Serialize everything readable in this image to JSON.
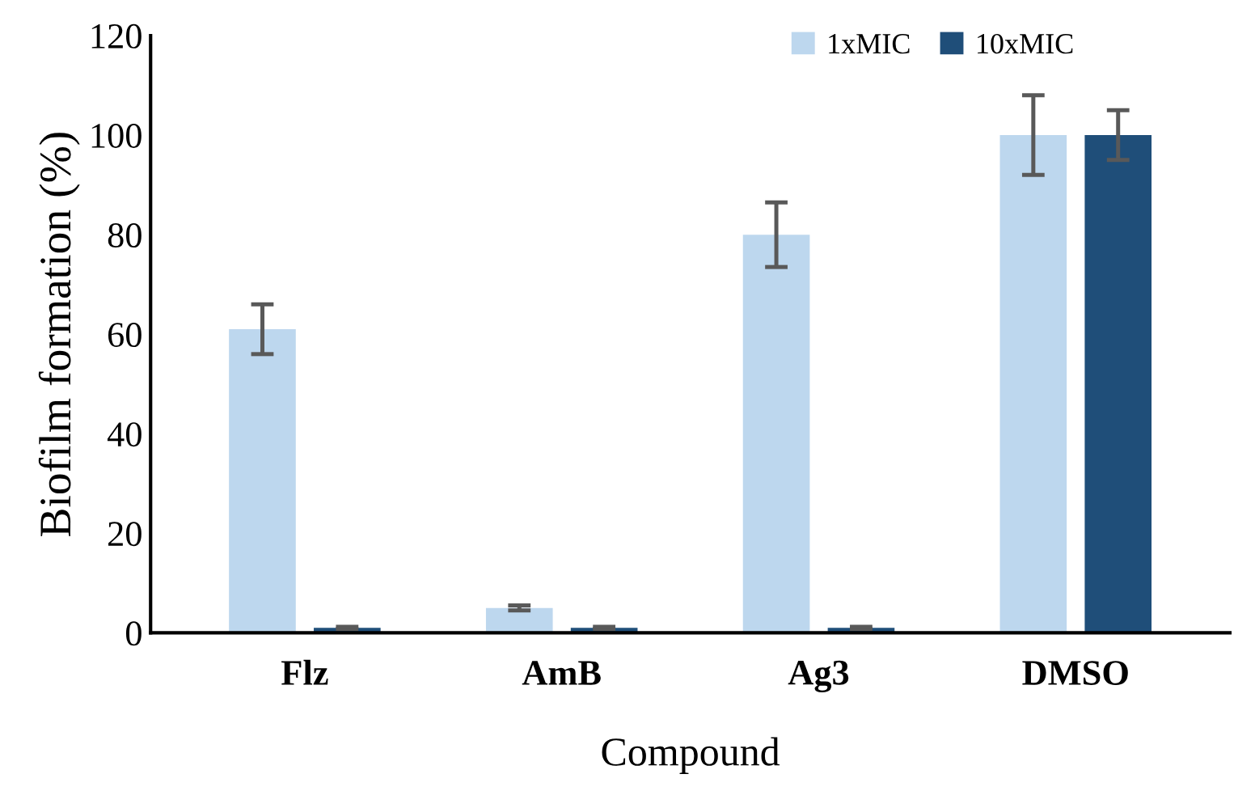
{
  "chart_data": {
    "type": "bar",
    "xlabel": "Compound",
    "ylabel": "Biofilm formation (%)",
    "categories": [
      "Flz",
      "AmB",
      "Ag3",
      "DMSO"
    ],
    "series": [
      {
        "name": "1xMIC",
        "color": "#bdd7ee",
        "values": [
          61,
          5,
          80,
          100
        ],
        "errors": [
          5,
          0.5,
          6.5,
          8
        ]
      },
      {
        "name": "10xMIC",
        "color": "#1f4e79",
        "values": [
          1,
          1,
          1,
          100
        ],
        "errors": [
          0.2,
          0.2,
          0.2,
          5
        ]
      }
    ],
    "ylim": [
      0,
      120
    ],
    "yticks": [
      0,
      20,
      40,
      60,
      80,
      100,
      120
    ],
    "grid": false,
    "legend": "top right"
  }
}
